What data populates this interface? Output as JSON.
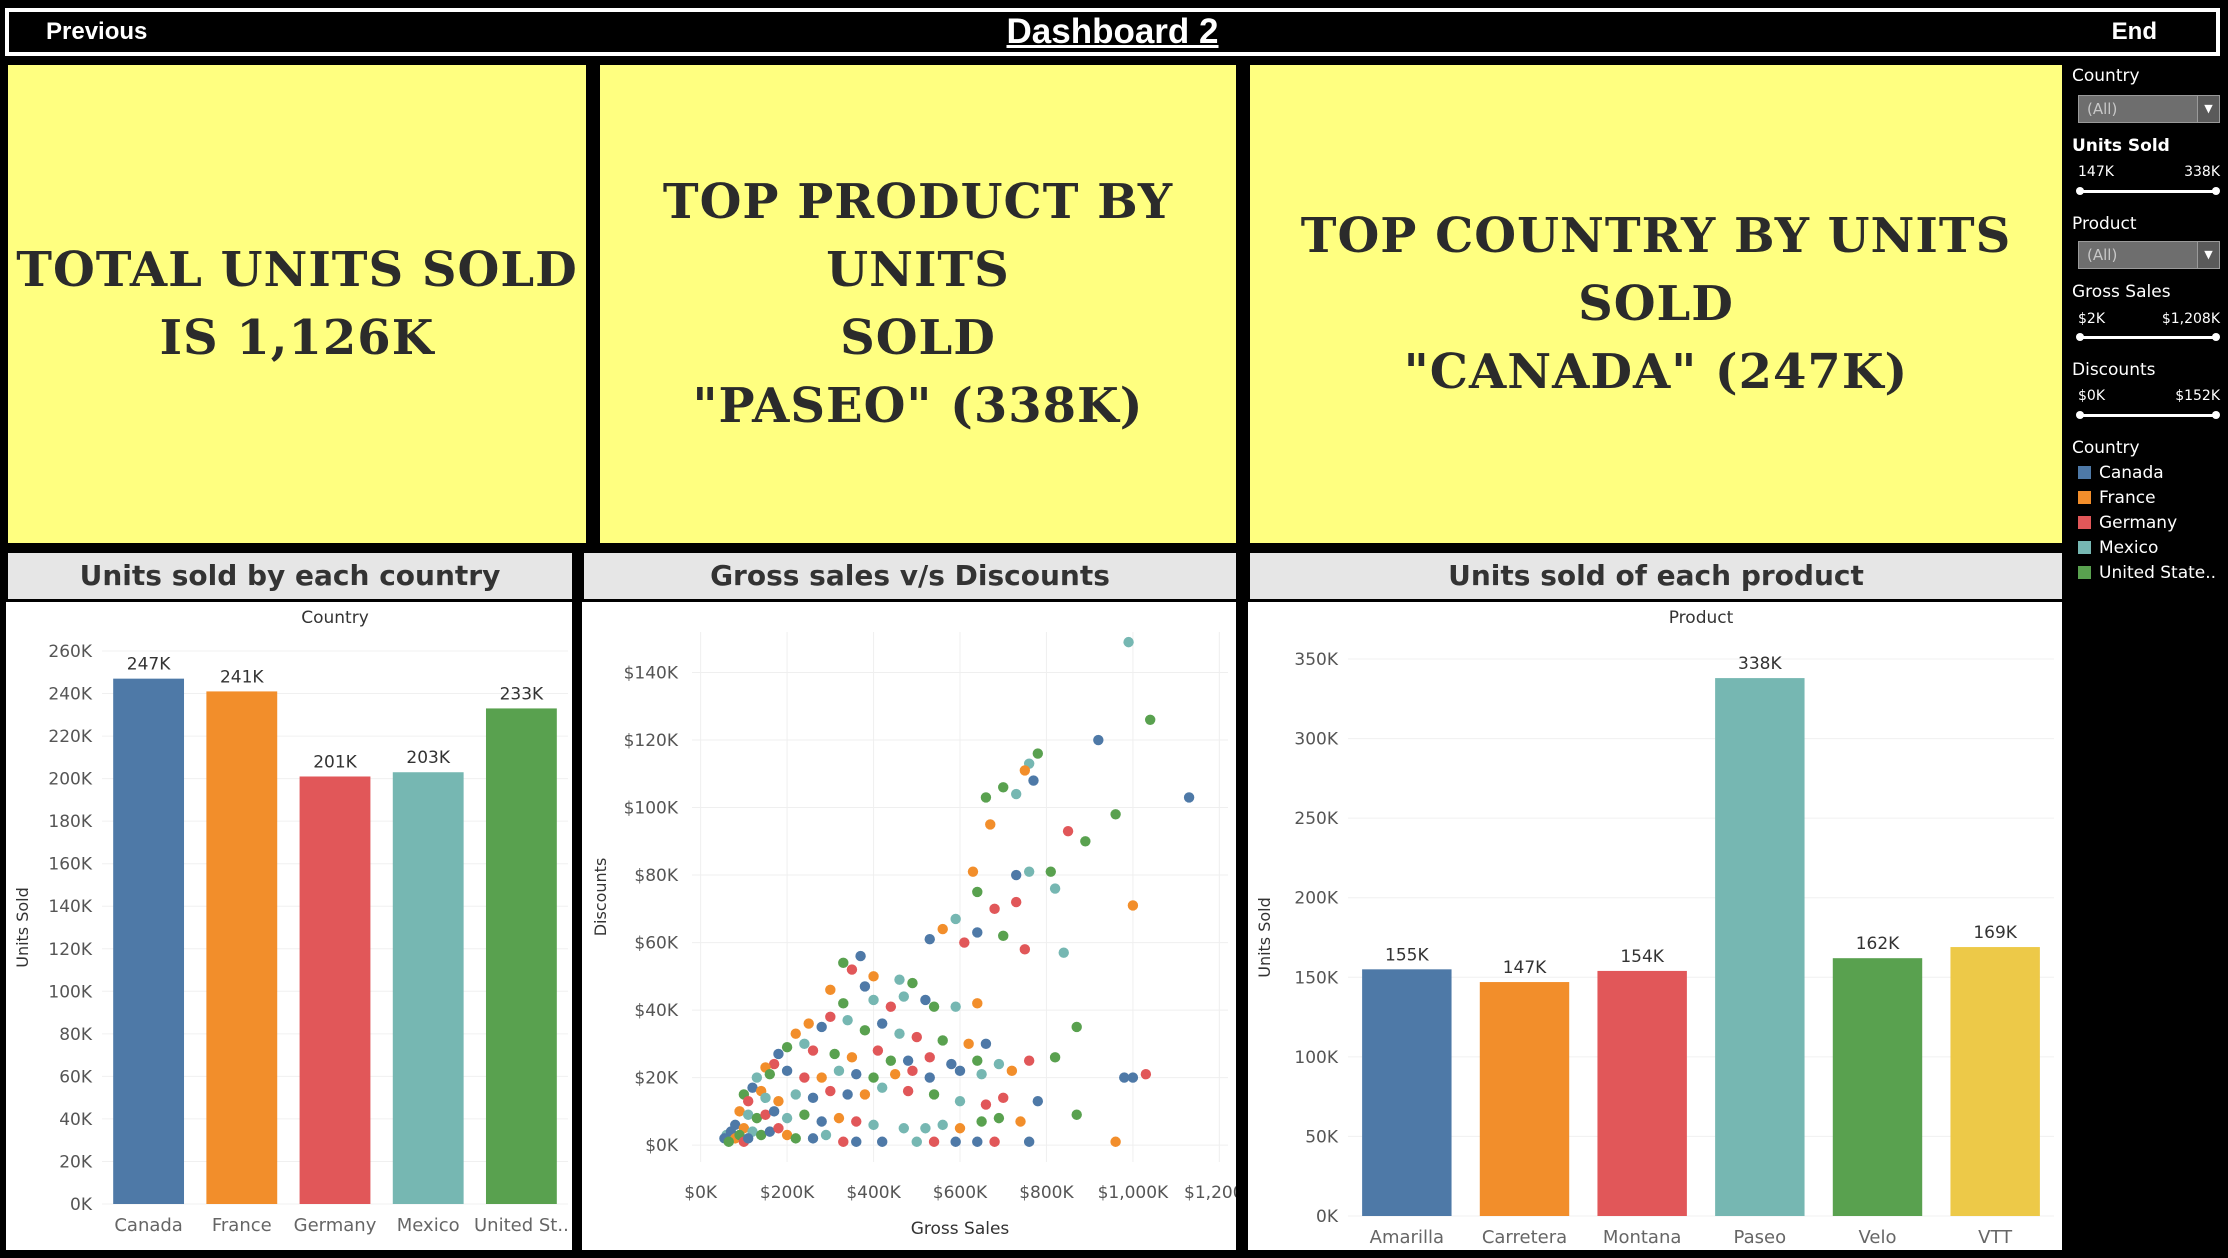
{
  "header": {
    "previous": "Previous",
    "title": "Dashboard 2",
    "end": "End"
  },
  "kpis": {
    "total": [
      "Total units sold",
      "is 1,126K"
    ],
    "top_product": [
      "Top product by units",
      "sold",
      "\"Paseo\" (338K)"
    ],
    "top_country": [
      "Top country by units sold",
      "\"Canada\" (247K)"
    ]
  },
  "charts": {
    "country_title": "Units sold by each country",
    "scatter_title": "Gross sales v/s Discounts",
    "product_title": "Units sold of each product"
  },
  "filters": {
    "country_label": "Country",
    "country_value": "(All)",
    "units_label": "Units Sold",
    "units_min": "147K",
    "units_max": "338K",
    "product_label": "Product",
    "product_value": "(All)",
    "gross_label": "Gross Sales",
    "gross_min": "$2K",
    "gross_max": "$1,208K",
    "disc_label": "Discounts",
    "disc_min": "$0K",
    "disc_max": "$152K",
    "legend_label": "Country",
    "legend": [
      {
        "name": "Canada",
        "color": "#4e79a7"
      },
      {
        "name": "France",
        "color": "#f28e2b"
      },
      {
        "name": "Germany",
        "color": "#e15759"
      },
      {
        "name": "Mexico",
        "color": "#76b7b2"
      },
      {
        "name": "United State..",
        "color": "#59a14f"
      }
    ]
  },
  "chart_data": [
    {
      "type": "bar",
      "header": "Country",
      "ylabel": "Units Sold",
      "categories": [
        "Canada",
        "France",
        "Germany",
        "Mexico",
        "United St.."
      ],
      "values": [
        247,
        241,
        201,
        203,
        233
      ],
      "labels": [
        "247K",
        "241K",
        "201K",
        "203K",
        "233K"
      ],
      "colors": [
        "#4e79a7",
        "#f28e2b",
        "#e15759",
        "#76b7b2",
        "#59a14f"
      ],
      "ylim": [
        0,
        260
      ],
      "yticks": [
        0,
        20,
        40,
        60,
        80,
        100,
        120,
        140,
        160,
        180,
        200,
        220,
        240,
        260
      ],
      "ytick_labels": [
        "0K",
        "20K",
        "40K",
        "60K",
        "80K",
        "100K",
        "120K",
        "140K",
        "160K",
        "180K",
        "200K",
        "220K",
        "240K",
        "260K"
      ]
    },
    {
      "type": "scatter",
      "xlabel": "Gross Sales",
      "ylabel": "Discounts",
      "xlim": [
        -20,
        1220
      ],
      "ylim": [
        -5,
        152
      ],
      "xticks": [
        0,
        200,
        400,
        600,
        800,
        1000,
        1200
      ],
      "xtick_labels": [
        "$0K",
        "$200K",
        "$400K",
        "$600K",
        "$800K",
        "$1,000K",
        "$1,200K"
      ],
      "yticks": [
        0,
        20,
        40,
        60,
        80,
        100,
        120,
        140
      ],
      "ytick_labels": [
        "$0K",
        "$20K",
        "$40K",
        "$60K",
        "$80K",
        "$100K",
        "$120K",
        "$140K"
      ],
      "palette": [
        "#4e79a7",
        "#f28e2b",
        "#e15759",
        "#76b7b2",
        "#59a14f"
      ],
      "points": [
        [
          990,
          149,
          3
        ],
        [
          1040,
          126,
          4
        ],
        [
          920,
          120,
          0
        ],
        [
          780,
          116,
          4
        ],
        [
          760,
          113,
          3
        ],
        [
          750,
          111,
          1
        ],
        [
          770,
          108,
          0
        ],
        [
          700,
          106,
          4
        ],
        [
          730,
          104,
          3
        ],
        [
          660,
          103,
          4
        ],
        [
          1130,
          103,
          0
        ],
        [
          960,
          98,
          4
        ],
        [
          670,
          95,
          1
        ],
        [
          850,
          93,
          2
        ],
        [
          890,
          90,
          4
        ],
        [
          630,
          81,
          1
        ],
        [
          760,
          81,
          3
        ],
        [
          810,
          81,
          4
        ],
        [
          730,
          80,
          0
        ],
        [
          820,
          76,
          3
        ],
        [
          640,
          75,
          4
        ],
        [
          730,
          72,
          2
        ],
        [
          1000,
          71,
          1
        ],
        [
          680,
          70,
          2
        ],
        [
          590,
          67,
          3
        ],
        [
          560,
          64,
          1
        ],
        [
          640,
          63,
          0
        ],
        [
          700,
          62,
          4
        ],
        [
          530,
          61,
          0
        ],
        [
          610,
          60,
          2
        ],
        [
          750,
          58,
          2
        ],
        [
          840,
          57,
          3
        ],
        [
          370,
          56,
          0
        ],
        [
          330,
          54,
          4
        ],
        [
          350,
          52,
          2
        ],
        [
          400,
          50,
          1
        ],
        [
          460,
          49,
          3
        ],
        [
          490,
          48,
          4
        ],
        [
          380,
          47,
          0
        ],
        [
          300,
          46,
          1
        ],
        [
          400,
          43,
          3
        ],
        [
          470,
          44,
          3
        ],
        [
          520,
          43,
          0
        ],
        [
          540,
          41,
          4
        ],
        [
          590,
          41,
          3
        ],
        [
          640,
          42,
          1
        ],
        [
          330,
          42,
          4
        ],
        [
          440,
          41,
          2
        ],
        [
          300,
          38,
          2
        ],
        [
          340,
          37,
          3
        ],
        [
          250,
          36,
          1
        ],
        [
          280,
          35,
          0
        ],
        [
          380,
          34,
          4
        ],
        [
          420,
          36,
          0
        ],
        [
          460,
          33,
          3
        ],
        [
          500,
          32,
          2
        ],
        [
          560,
          31,
          4
        ],
        [
          620,
          30,
          1
        ],
        [
          660,
          30,
          0
        ],
        [
          220,
          33,
          1
        ],
        [
          240,
          30,
          3
        ],
        [
          200,
          29,
          4
        ],
        [
          180,
          27,
          0
        ],
        [
          260,
          28,
          2
        ],
        [
          310,
          27,
          4
        ],
        [
          350,
          26,
          1
        ],
        [
          410,
          28,
          2
        ],
        [
          440,
          25,
          4
        ],
        [
          480,
          25,
          0
        ],
        [
          530,
          26,
          2
        ],
        [
          580,
          24,
          0
        ],
        [
          640,
          25,
          4
        ],
        [
          690,
          24,
          3
        ],
        [
          760,
          25,
          2
        ],
        [
          820,
          26,
          4
        ],
        [
          870,
          35,
          4
        ],
        [
          170,
          24,
          2
        ],
        [
          150,
          23,
          1
        ],
        [
          130,
          20,
          3
        ],
        [
          160,
          21,
          4
        ],
        [
          200,
          22,
          0
        ],
        [
          240,
          20,
          2
        ],
        [
          280,
          20,
          1
        ],
        [
          320,
          22,
          3
        ],
        [
          360,
          21,
          0
        ],
        [
          400,
          20,
          4
        ],
        [
          450,
          21,
          1
        ],
        [
          490,
          22,
          2
        ],
        [
          530,
          20,
          0
        ],
        [
          600,
          22,
          0
        ],
        [
          650,
          21,
          3
        ],
        [
          720,
          22,
          1
        ],
        [
          980,
          20,
          0
        ],
        [
          1000,
          20,
          0
        ],
        [
          1030,
          21,
          2
        ],
        [
          120,
          17,
          0
        ],
        [
          140,
          16,
          1
        ],
        [
          100,
          15,
          4
        ],
        [
          110,
          13,
          2
        ],
        [
          150,
          14,
          3
        ],
        [
          180,
          13,
          1
        ],
        [
          220,
          15,
          3
        ],
        [
          260,
          14,
          0
        ],
        [
          300,
          16,
          2
        ],
        [
          340,
          15,
          0
        ],
        [
          380,
          15,
          1
        ],
        [
          420,
          17,
          3
        ],
        [
          480,
          16,
          2
        ],
        [
          540,
          15,
          4
        ],
        [
          600,
          13,
          3
        ],
        [
          660,
          12,
          2
        ],
        [
          700,
          14,
          2
        ],
        [
          780,
          13,
          0
        ],
        [
          90,
          10,
          1
        ],
        [
          110,
          9,
          3
        ],
        [
          130,
          8,
          4
        ],
        [
          150,
          9,
          2
        ],
        [
          170,
          10,
          0
        ],
        [
          200,
          8,
          3
        ],
        [
          240,
          9,
          4
        ],
        [
          280,
          7,
          0
        ],
        [
          320,
          8,
          1
        ],
        [
          360,
          7,
          2
        ],
        [
          400,
          6,
          3
        ],
        [
          470,
          5,
          3
        ],
        [
          520,
          5,
          3
        ],
        [
          560,
          6,
          3
        ],
        [
          600,
          5,
          1
        ],
        [
          650,
          7,
          4
        ],
        [
          690,
          8,
          4
        ],
        [
          740,
          7,
          1
        ],
        [
          870,
          9,
          4
        ],
        [
          80,
          6,
          0
        ],
        [
          100,
          5,
          1
        ],
        [
          120,
          4,
          3
        ],
        [
          140,
          3,
          4
        ],
        [
          160,
          4,
          0
        ],
        [
          180,
          5,
          2
        ],
        [
          200,
          3,
          1
        ],
        [
          220,
          2,
          4
        ],
        [
          260,
          2,
          0
        ],
        [
          290,
          3,
          3
        ],
        [
          330,
          1,
          2
        ],
        [
          360,
          1,
          0
        ],
        [
          420,
          1,
          0
        ],
        [
          500,
          1,
          3
        ],
        [
          540,
          1,
          2
        ],
        [
          590,
          1,
          0
        ],
        [
          640,
          1,
          0
        ],
        [
          680,
          1,
          2
        ],
        [
          760,
          1,
          0
        ],
        [
          960,
          1,
          1
        ],
        [
          60,
          3,
          3
        ],
        [
          70,
          4,
          0
        ],
        [
          80,
          2,
          1
        ],
        [
          90,
          3,
          4
        ],
        [
          100,
          1,
          2
        ],
        [
          110,
          2,
          0
        ],
        [
          55,
          2,
          0
        ],
        [
          65,
          1,
          4
        ]
      ]
    },
    {
      "type": "bar",
      "header": "Product",
      "ylabel": "Units Sold",
      "categories": [
        "Amarilla",
        "Carretera",
        "Montana",
        "Paseo",
        "Velo",
        "VTT"
      ],
      "values": [
        155,
        147,
        154,
        338,
        162,
        169
      ],
      "labels": [
        "155K",
        "147K",
        "154K",
        "338K",
        "162K",
        "169K"
      ],
      "colors": [
        "#4e79a7",
        "#f28e2b",
        "#e15759",
        "#76b7b2",
        "#59a14f",
        "#edc948"
      ],
      "ylim": [
        0,
        350
      ],
      "yticks": [
        0,
        50,
        100,
        150,
        200,
        250,
        300,
        350
      ],
      "ytick_labels": [
        "0K",
        "50K",
        "100K",
        "150K",
        "200K",
        "250K",
        "300K",
        "350K"
      ]
    }
  ]
}
